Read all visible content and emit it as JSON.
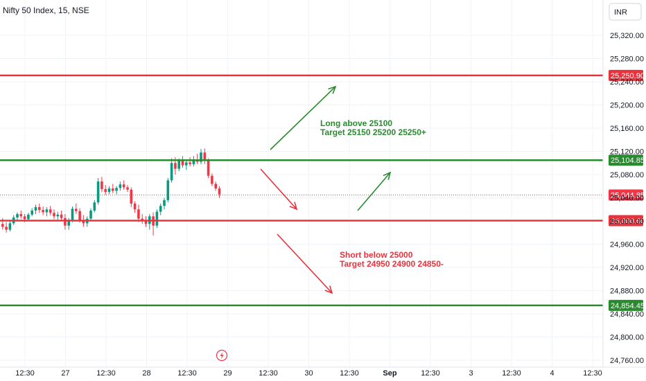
{
  "header": {
    "title": "Nifty 50 Index, 15, NSE",
    "currency": "INR"
  },
  "colors": {
    "up": "#089981",
    "down": "#f23645",
    "green_line": "#2a8a2f",
    "red_line": "#e8323c",
    "grid": "#f0f3fa",
    "text": "#131722",
    "annotation_green": "#2a8a2f",
    "annotation_red": "#e8323c"
  },
  "chart_data": {
    "type": "candlestick",
    "y_ticks": [
      "25,320.00",
      "25,280.00",
      "25,240.00",
      "25,200.00",
      "25,160.00",
      "25,120.00",
      "25,080.00",
      "25,040.00",
      "25,000.00",
      "24,960.00",
      "24,920.00",
      "24,880.00",
      "24,840.00",
      "24,800.00",
      "24,760.00"
    ],
    "ylim": [
      24750,
      25345
    ],
    "x_ticks": [
      {
        "label": "12:30",
        "bold": false
      },
      {
        "label": "27",
        "bold": false
      },
      {
        "label": "12:30",
        "bold": false
      },
      {
        "label": "28",
        "bold": false
      },
      {
        "label": "12:30",
        "bold": false
      },
      {
        "label": "29",
        "bold": false
      },
      {
        "label": "12:30",
        "bold": false
      },
      {
        "label": "30",
        "bold": false
      },
      {
        "label": "12:30",
        "bold": false
      },
      {
        "label": "Sep",
        "bold": true
      },
      {
        "label": "12:30",
        "bold": false
      },
      {
        "label": "3",
        "bold": false
      },
      {
        "label": "12:30",
        "bold": false
      },
      {
        "label": "4",
        "bold": false
      },
      {
        "label": "12:30",
        "bold": false
      }
    ],
    "levels": [
      {
        "name": "resistance-high",
        "value": 25250.9,
        "label": "25,250.90",
        "color": "red"
      },
      {
        "name": "long-trigger",
        "value": 25104.85,
        "label": "25,104.85",
        "color": "green"
      },
      {
        "name": "last-price",
        "value": 25044.85,
        "label": "25,044.85",
        "color": "red",
        "dotted": true
      },
      {
        "name": "short-trigger",
        "value": 25000.6,
        "label": "25,000.60",
        "color": "red"
      },
      {
        "name": "support-low",
        "value": 24854.45,
        "label": "24,854.45",
        "color": "green"
      }
    ],
    "candles": [
      [
        24995,
        25005,
        24985,
        24990
      ],
      [
        24990,
        24998,
        24980,
        24985
      ],
      [
        24985,
        25002,
        24982,
        24996
      ],
      [
        24996,
        25010,
        24993,
        25006
      ],
      [
        25006,
        25015,
        25000,
        25012
      ],
      [
        25012,
        25018,
        25004,
        25008
      ],
      [
        25008,
        25012,
        24998,
        25003
      ],
      [
        25003,
        25014,
        25000,
        25011
      ],
      [
        25011,
        25022,
        25008,
        25018
      ],
      [
        25018,
        25028,
        25012,
        25024
      ],
      [
        25024,
        25030,
        25014,
        25019
      ],
      [
        25019,
        25025,
        25010,
        25015
      ],
      [
        25015,
        25024,
        25008,
        25020
      ],
      [
        25020,
        25026,
        25010,
        25014
      ],
      [
        25014,
        25020,
        25003,
        25008
      ],
      [
        25008,
        25016,
        25002,
        25011
      ],
      [
        25011,
        25018,
        25000,
        25005
      ],
      [
        25005,
        25012,
        24985,
        24992
      ],
      [
        24992,
        25005,
        24985,
        25002
      ],
      [
        25002,
        25025,
        24998,
        25021
      ],
      [
        25021,
        25030,
        25012,
        25017
      ],
      [
        25017,
        25022,
        24997,
        25001
      ],
      [
        25001,
        25010,
        24990,
        24996
      ],
      [
        24996,
        25008,
        24990,
        25004
      ],
      [
        25004,
        25022,
        25000,
        25018
      ],
      [
        25018,
        25036,
        25015,
        25032
      ],
      [
        25032,
        25074,
        25028,
        25068
      ],
      [
        25068,
        25076,
        25050,
        25055
      ],
      [
        25055,
        25062,
        25045,
        25050
      ],
      [
        25050,
        25060,
        25046,
        25056
      ],
      [
        25056,
        25064,
        25048,
        25052
      ],
      [
        25052,
        25060,
        25046,
        25057
      ],
      [
        25057,
        25068,
        25052,
        25063
      ],
      [
        25063,
        25070,
        25054,
        25058
      ],
      [
        25058,
        25062,
        25050,
        25054
      ],
      [
        25054,
        25058,
        25024,
        25030
      ],
      [
        25030,
        25034,
        25014,
        25020
      ],
      [
        25020,
        25028,
        24998,
        25004
      ],
      [
        25004,
        25012,
        24995,
        25000
      ],
      [
        25000,
        25008,
        24990,
        24995
      ],
      [
        24995,
        25012,
        24985,
        25008
      ],
      [
        25008,
        25015,
        24975,
        24992
      ],
      [
        24992,
        25020,
        24988,
        25016
      ],
      [
        25016,
        25030,
        25010,
        25026
      ],
      [
        25026,
        25040,
        25020,
        25036
      ],
      [
        25036,
        25074,
        25032,
        25070
      ],
      [
        25070,
        25108,
        25066,
        25100
      ],
      [
        25100,
        25110,
        25080,
        25090
      ],
      [
        25090,
        25108,
        25086,
        25104
      ],
      [
        25104,
        25112,
        25092,
        25096
      ],
      [
        25096,
        25106,
        25088,
        25101
      ],
      [
        25101,
        25110,
        25094,
        25098
      ],
      [
        25098,
        25112,
        25094,
        25106
      ],
      [
        25106,
        25116,
        25098,
        25102
      ],
      [
        25102,
        25124,
        25098,
        25118
      ],
      [
        25118,
        25125,
        25098,
        25104
      ],
      [
        25104,
        25108,
        25074,
        25078
      ],
      [
        25078,
        25082,
        25060,
        25064
      ],
      [
        25064,
        25068,
        25052,
        25056
      ],
      [
        25056,
        25060,
        25040,
        25046
      ]
    ],
    "annotations": [
      {
        "name": "long-note",
        "lines": [
          "Long above 25100",
          "Target 25150 25200 25250+"
        ],
        "color": "green"
      },
      {
        "name": "short-note",
        "lines": [
          "Short below 25000",
          "Target 24950 24900 24850-"
        ],
        "color": "red"
      }
    ]
  }
}
